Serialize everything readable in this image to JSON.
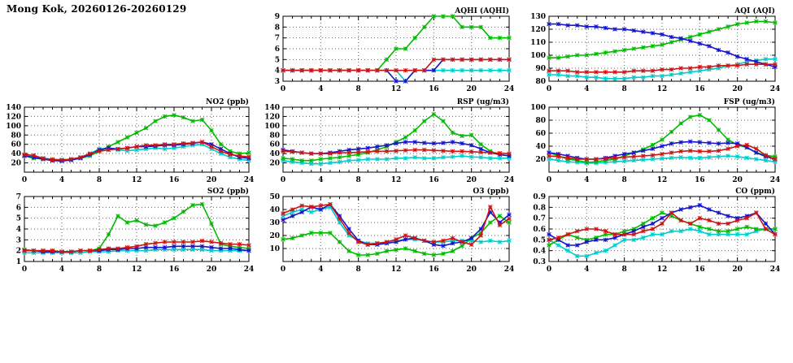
{
  "page_title": "Mong Kok, 20260126-20260129",
  "palette": {
    "blue": "#1414cc",
    "red": "#cc1414",
    "green": "#00bb00",
    "cyan": "#00cccc"
  },
  "chart_data": {
    "note": "see charts[]",
    "type": "line"
  },
  "charts": [
    {
      "id": "aqhi",
      "title": "AQHI (AQHI)",
      "type": "line",
      "xlim": [
        0,
        24
      ],
      "xticks": [
        0,
        4,
        8,
        12,
        16,
        20,
        24
      ],
      "ylim": [
        3,
        9
      ],
      "yticks": [
        3,
        4,
        5,
        6,
        7,
        8,
        9
      ],
      "series": [
        {
          "color": "cyan",
          "y": [
            4,
            4,
            4,
            4,
            4,
            4,
            4,
            4,
            4,
            4,
            4,
            4,
            4,
            3,
            4,
            4,
            4,
            4,
            4,
            4,
            4,
            4,
            4,
            4,
            4
          ]
        },
        {
          "color": "green",
          "y": [
            4,
            4,
            4,
            4,
            4,
            4,
            4,
            4,
            4,
            4,
            4,
            5,
            6,
            6,
            7,
            8,
            9,
            9,
            9,
            8,
            8,
            8,
            7,
            7,
            7
          ]
        },
        {
          "color": "blue",
          "y": [
            4,
            4,
            4,
            4,
            4,
            4,
            4,
            4,
            4,
            4,
            4,
            4,
            3,
            3,
            4,
            4,
            4,
            5,
            5,
            5,
            5,
            5,
            5,
            5,
            5
          ]
        },
        {
          "color": "red",
          "y": [
            4,
            4,
            4,
            4,
            4,
            4,
            4,
            4,
            4,
            4,
            4,
            4,
            4,
            4,
            4,
            4,
            5,
            5,
            5,
            5,
            5,
            5,
            5,
            5,
            5
          ]
        }
      ]
    },
    {
      "id": "aqi",
      "title": "AQI (AQI)",
      "type": "line",
      "xlim": [
        0,
        24
      ],
      "xticks": [
        0,
        4,
        8,
        12,
        16,
        20,
        24
      ],
      "ylim": [
        80,
        130
      ],
      "yticks": [
        80,
        90,
        100,
        110,
        120,
        130
      ],
      "series": [
        {
          "color": "cyan",
          "y": [
            85,
            85,
            84,
            84,
            83,
            83,
            82,
            82,
            82,
            83,
            83,
            84,
            84,
            85,
            86,
            87,
            88,
            89,
            90,
            92,
            93,
            95,
            96,
            97,
            97
          ]
        },
        {
          "color": "green",
          "y": [
            98,
            98,
            99,
            100,
            100,
            101,
            102,
            103,
            104,
            105,
            106,
            107,
            108,
            110,
            112,
            114,
            116,
            118,
            120,
            122,
            124,
            125,
            126,
            126,
            125
          ]
        },
        {
          "color": "blue",
          "y": [
            124,
            124,
            123,
            123,
            122,
            122,
            121,
            120,
            120,
            119,
            118,
            117,
            116,
            114,
            113,
            111,
            109,
            107,
            104,
            102,
            99,
            97,
            95,
            93,
            91
          ]
        },
        {
          "color": "red",
          "y": [
            88,
            88,
            88,
            87,
            87,
            87,
            87,
            87,
            87,
            88,
            88,
            88,
            89,
            89,
            90,
            90,
            91,
            91,
            92,
            92,
            92,
            93,
            93,
            93,
            93
          ]
        }
      ]
    },
    {
      "id": "no2",
      "title": "NO2 (ppb)",
      "type": "line",
      "xlim": [
        0,
        24
      ],
      "xticks": [
        0,
        4,
        8,
        12,
        16,
        20,
        24
      ],
      "ylim": [
        0,
        140
      ],
      "yticks": [
        20,
        40,
        60,
        80,
        100,
        120,
        140
      ],
      "series": [
        {
          "color": "cyan",
          "y": [
            36,
            33,
            30,
            28,
            27,
            28,
            32,
            40,
            50,
            52,
            48,
            46,
            48,
            50,
            52,
            50,
            52,
            55,
            58,
            60,
            50,
            40,
            32,
            28,
            25
          ]
        },
        {
          "color": "green",
          "y": [
            35,
            30,
            28,
            26,
            25,
            27,
            30,
            35,
            45,
            55,
            65,
            75,
            85,
            95,
            110,
            120,
            123,
            118,
            110,
            113,
            90,
            60,
            45,
            40,
            42
          ]
        },
        {
          "color": "blue",
          "y": [
            35,
            32,
            28,
            25,
            24,
            26,
            30,
            38,
            48,
            52,
            50,
            52,
            55,
            55,
            56,
            58,
            58,
            60,
            62,
            65,
            60,
            50,
            40,
            32,
            30
          ]
        },
        {
          "color": "red",
          "y": [
            38,
            36,
            30,
            27,
            26,
            28,
            32,
            40,
            45,
            48,
            50,
            52,
            55,
            58,
            58,
            60,
            60,
            62,
            63,
            65,
            55,
            45,
            38,
            35,
            33
          ]
        }
      ]
    },
    {
      "id": "rsp",
      "title": "RSP (ug/m3)",
      "type": "line",
      "xlim": [
        0,
        24
      ],
      "xticks": [
        0,
        4,
        8,
        12,
        16,
        20,
        24
      ],
      "ylim": [
        0,
        140
      ],
      "yticks": [
        20,
        40,
        60,
        80,
        100,
        120,
        140
      ],
      "series": [
        {
          "color": "cyan",
          "y": [
            25,
            22,
            20,
            18,
            18,
            20,
            22,
            25,
            26,
            28,
            28,
            28,
            30,
            30,
            32,
            30,
            30,
            32,
            33,
            35,
            33,
            32,
            30,
            30,
            30
          ]
        },
        {
          "color": "green",
          "y": [
            30,
            28,
            25,
            25,
            28,
            30,
            32,
            35,
            38,
            42,
            48,
            55,
            65,
            75,
            90,
            110,
            125,
            110,
            85,
            78,
            80,
            60,
            45,
            38,
            35
          ]
        },
        {
          "color": "blue",
          "y": [
            48,
            45,
            42,
            40,
            40,
            42,
            45,
            48,
            50,
            52,
            55,
            58,
            62,
            65,
            65,
            63,
            62,
            63,
            65,
            62,
            58,
            50,
            42,
            38,
            35
          ]
        },
        {
          "color": "red",
          "y": [
            45,
            44,
            42,
            40,
            40,
            40,
            42,
            42,
            43,
            44,
            45,
            45,
            46,
            47,
            48,
            48,
            47,
            46,
            45,
            45,
            44,
            43,
            42,
            41,
            40
          ]
        }
      ]
    },
    {
      "id": "fsp",
      "title": "FSP (ug/m3)",
      "type": "line",
      "xlim": [
        0,
        24
      ],
      "xticks": [
        0,
        4,
        8,
        12,
        16,
        20,
        24
      ],
      "ylim": [
        0,
        100
      ],
      "yticks": [
        20,
        40,
        60,
        80,
        100
      ],
      "series": [
        {
          "color": "cyan",
          "y": [
            20,
            18,
            16,
            15,
            14,
            14,
            15,
            16,
            17,
            18,
            19,
            20,
            21,
            22,
            23,
            22,
            22,
            23,
            24,
            25,
            24,
            22,
            20,
            18,
            16
          ]
        },
        {
          "color": "green",
          "y": [
            30,
            25,
            20,
            18,
            15,
            16,
            18,
            20,
            25,
            30,
            35,
            42,
            50,
            62,
            75,
            85,
            88,
            80,
            65,
            50,
            42,
            38,
            30,
            26,
            24
          ]
        },
        {
          "color": "blue",
          "y": [
            30,
            28,
            25,
            22,
            20,
            20,
            22,
            25,
            28,
            30,
            33,
            36,
            40,
            44,
            46,
            47,
            46,
            45,
            44,
            45,
            44,
            38,
            30,
            24,
            20
          ]
        },
        {
          "color": "red",
          "y": [
            25,
            24,
            22,
            20,
            20,
            20,
            21,
            22,
            23,
            24,
            25,
            26,
            28,
            30,
            32,
            33,
            32,
            32,
            33,
            36,
            40,
            42,
            36,
            26,
            20
          ]
        }
      ]
    },
    {
      "id": "so2",
      "title": "SO2 (ppb)",
      "type": "line",
      "xlim": [
        0,
        24
      ],
      "xticks": [
        0,
        4,
        8,
        12,
        16,
        20,
        24
      ],
      "ylim": [
        1,
        7
      ],
      "yticks": [
        1,
        2,
        3,
        4,
        5,
        6,
        7
      ],
      "series": [
        {
          "color": "cyan",
          "y": [
            1.8,
            1.8,
            1.8,
            1.8,
            1.8,
            1.8,
            1.8,
            1.9,
            1.9,
            1.9,
            2.0,
            2.0,
            2.0,
            2.0,
            2.1,
            2.1,
            2.1,
            2.1,
            2.1,
            2.1,
            2.0,
            2.0,
            2.0,
            2.0,
            2.0
          ]
        },
        {
          "color": "green",
          "y": [
            2.1,
            2.0,
            2.0,
            2.0,
            1.9,
            1.9,
            2.0,
            2.0,
            2.2,
            3.5,
            5.2,
            4.6,
            4.8,
            4.4,
            4.3,
            4.6,
            5.0,
            5.6,
            6.2,
            6.3,
            4.5,
            2.6,
            2.4,
            2.3,
            2.2
          ]
        },
        {
          "color": "blue",
          "y": [
            2.0,
            2.0,
            1.9,
            1.9,
            1.9,
            1.9,
            2.0,
            2.0,
            2.0,
            2.1,
            2.1,
            2.2,
            2.2,
            2.3,
            2.3,
            2.3,
            2.4,
            2.4,
            2.4,
            2.4,
            2.3,
            2.2,
            2.2,
            2.1,
            2.0
          ]
        },
        {
          "color": "red",
          "y": [
            2.0,
            2.0,
            2.0,
            2.0,
            1.9,
            1.9,
            2.0,
            2.0,
            2.1,
            2.2,
            2.2,
            2.3,
            2.4,
            2.6,
            2.7,
            2.8,
            2.8,
            2.8,
            2.8,
            2.9,
            2.8,
            2.7,
            2.6,
            2.6,
            2.5
          ]
        }
      ]
    },
    {
      "id": "o3",
      "title": "O3 (ppb)",
      "type": "line",
      "xlim": [
        0,
        24
      ],
      "xticks": [
        0,
        4,
        8,
        12,
        16,
        20,
        24
      ],
      "ylim": [
        0,
        50
      ],
      "yticks": [
        10,
        20,
        30,
        40,
        50
      ],
      "series": [
        {
          "color": "cyan",
          "y": [
            35,
            38,
            40,
            38,
            40,
            42,
            30,
            20,
            16,
            14,
            14,
            15,
            16,
            17,
            17,
            16,
            15,
            15,
            16,
            16,
            16,
            15,
            16,
            15,
            16
          ]
        },
        {
          "color": "green",
          "y": [
            17,
            18,
            20,
            22,
            22,
            22,
            15,
            8,
            5,
            5,
            6,
            8,
            9,
            10,
            8,
            6,
            5,
            6,
            8,
            12,
            18,
            22,
            30,
            35,
            30
          ]
        },
        {
          "color": "blue",
          "y": [
            32,
            35,
            38,
            42,
            40,
            44,
            35,
            25,
            16,
            13,
            13,
            14,
            15,
            17,
            18,
            16,
            13,
            12,
            14,
            15,
            18,
            25,
            38,
            30,
            36
          ]
        },
        {
          "color": "red",
          "y": [
            37,
            40,
            43,
            42,
            43,
            44,
            33,
            22,
            15,
            13,
            14,
            15,
            17,
            20,
            18,
            16,
            15,
            16,
            18,
            15,
            13,
            20,
            42,
            28,
            33
          ]
        }
      ]
    },
    {
      "id": "co",
      "title": "CO (ppm)",
      "type": "line",
      "xlim": [
        0,
        24
      ],
      "xticks": [
        0,
        4,
        8,
        12,
        16,
        20,
        24
      ],
      "ylim": [
        0.3,
        0.9
      ],
      "yticks": [
        0.3,
        0.4,
        0.5,
        0.6,
        0.7,
        0.8,
        0.9
      ],
      "series": [
        {
          "color": "cyan",
          "y": [
            0.5,
            0.45,
            0.4,
            0.35,
            0.35,
            0.38,
            0.4,
            0.45,
            0.5,
            0.5,
            0.52,
            0.55,
            0.55,
            0.58,
            0.58,
            0.6,
            0.58,
            0.55,
            0.55,
            0.55,
            0.55,
            0.55,
            0.58,
            0.6,
            0.6
          ]
        },
        {
          "color": "green",
          "y": [
            0.45,
            0.5,
            0.55,
            0.52,
            0.5,
            0.52,
            0.55,
            0.55,
            0.58,
            0.6,
            0.65,
            0.7,
            0.75,
            0.72,
            0.68,
            0.65,
            0.62,
            0.6,
            0.58,
            0.58,
            0.6,
            0.62,
            0.6,
            0.6,
            0.6
          ]
        },
        {
          "color": "blue",
          "y": [
            0.55,
            0.5,
            0.45,
            0.45,
            0.48,
            0.5,
            0.5,
            0.52,
            0.55,
            0.58,
            0.62,
            0.65,
            0.7,
            0.75,
            0.78,
            0.8,
            0.82,
            0.78,
            0.75,
            0.72,
            0.7,
            0.72,
            0.75,
            0.65,
            0.55
          ]
        },
        {
          "color": "red",
          "y": [
            0.5,
            0.52,
            0.55,
            0.58,
            0.6,
            0.6,
            0.58,
            0.55,
            0.55,
            0.55,
            0.58,
            0.6,
            0.65,
            0.75,
            0.68,
            0.65,
            0.7,
            0.68,
            0.65,
            0.65,
            0.68,
            0.7,
            0.75,
            0.6,
            0.55
          ]
        }
      ]
    }
  ]
}
